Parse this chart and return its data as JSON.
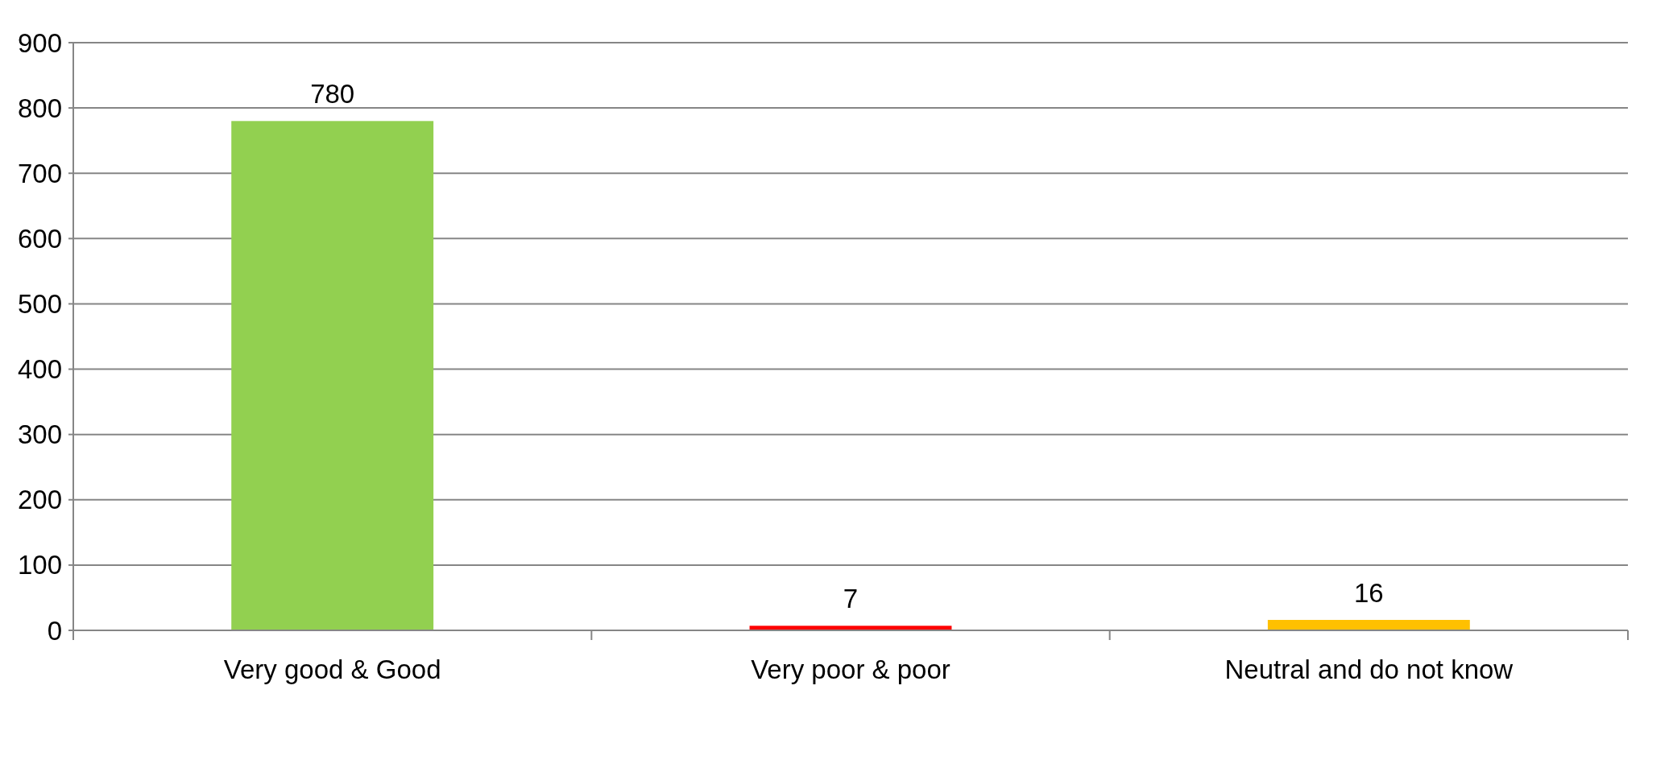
{
  "chart_data": {
    "type": "bar",
    "categories": [
      "Very good & Good",
      "Very poor & poor",
      "Neutral and do not know"
    ],
    "values": [
      780,
      7,
      16
    ],
    "colors": [
      "#92d050",
      "#ff0000",
      "#ffc000"
    ],
    "ylim": [
      0,
      900
    ],
    "yticks": [
      0,
      100,
      200,
      300,
      400,
      500,
      600,
      700,
      800,
      900
    ],
    "grid": "y",
    "data_labels": true
  }
}
